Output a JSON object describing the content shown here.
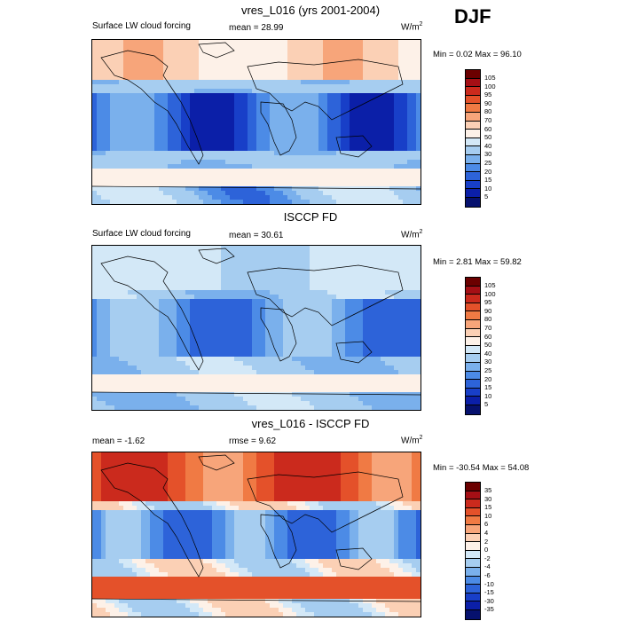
{
  "season": "DJF",
  "panels": [
    {
      "title": "vres_L016 (yrs 2001-2004)",
      "left_label": "Surface LW cloud forcing",
      "center_label": "mean =  28.99",
      "units": "W/m",
      "units_sup": "2",
      "minmax": "Min =   0.02 Max =  96.10",
      "levels": [
        "105",
        "100",
        "95",
        "90",
        "80",
        "70",
        "60",
        "50",
        "40",
        "30",
        "25",
        "20",
        "15",
        "10",
        "5"
      ],
      "colors": [
        "#6b0000",
        "#a50f15",
        "#cb2a1d",
        "#e4512a",
        "#f07a44",
        "#f7a57a",
        "#fbd0b5",
        "#fdf1e8",
        "#d3e8f7",
        "#a6cdf0",
        "#7ab0ec",
        "#4c8be6",
        "#2d63d9",
        "#183fc8",
        "#0b1fa8",
        "#06116e"
      ],
      "kind": "lw"
    },
    {
      "title": "ISCCP FD",
      "left_label": "Surface LW cloud forcing",
      "center_label": "mean =  30.61",
      "units": "W/m",
      "units_sup": "2",
      "minmax": "Min =   2.81 Max =  59.82",
      "levels": [
        "105",
        "100",
        "95",
        "90",
        "80",
        "70",
        "60",
        "50",
        "40",
        "30",
        "25",
        "20",
        "15",
        "10",
        "5"
      ],
      "colors": [
        "#6b0000",
        "#a50f15",
        "#cb2a1d",
        "#e4512a",
        "#f07a44",
        "#f7a57a",
        "#fbd0b5",
        "#fdf1e8",
        "#d3e8f7",
        "#a6cdf0",
        "#7ab0ec",
        "#4c8be6",
        "#2d63d9",
        "#183fc8",
        "#0b1fa8",
        "#06116e"
      ],
      "kind": "obs"
    },
    {
      "title": "vres_L016 - ISCCP FD",
      "left_label": "mean =  -1.62",
      "center_label": "rmse =   9.62",
      "units": "W/m",
      "units_sup": "2",
      "minmax": "Min = -30.54 Max =  54.08",
      "levels": [
        "35",
        "30",
        "15",
        "10",
        "6",
        "4",
        "2",
        "0",
        "-2",
        "-4",
        "-6",
        "-10",
        "-15",
        "-30",
        "-35"
      ],
      "colors": [
        "#6b0000",
        "#a50f15",
        "#cb2a1d",
        "#e4512a",
        "#f07a44",
        "#f7a57a",
        "#fbd0b5",
        "#fdf1e8",
        "#d3e8f7",
        "#a6cdf0",
        "#7ab0ec",
        "#4c8be6",
        "#2d63d9",
        "#183fc8",
        "#0b1fa8",
        "#06116e"
      ],
      "kind": "diff"
    }
  ]
}
